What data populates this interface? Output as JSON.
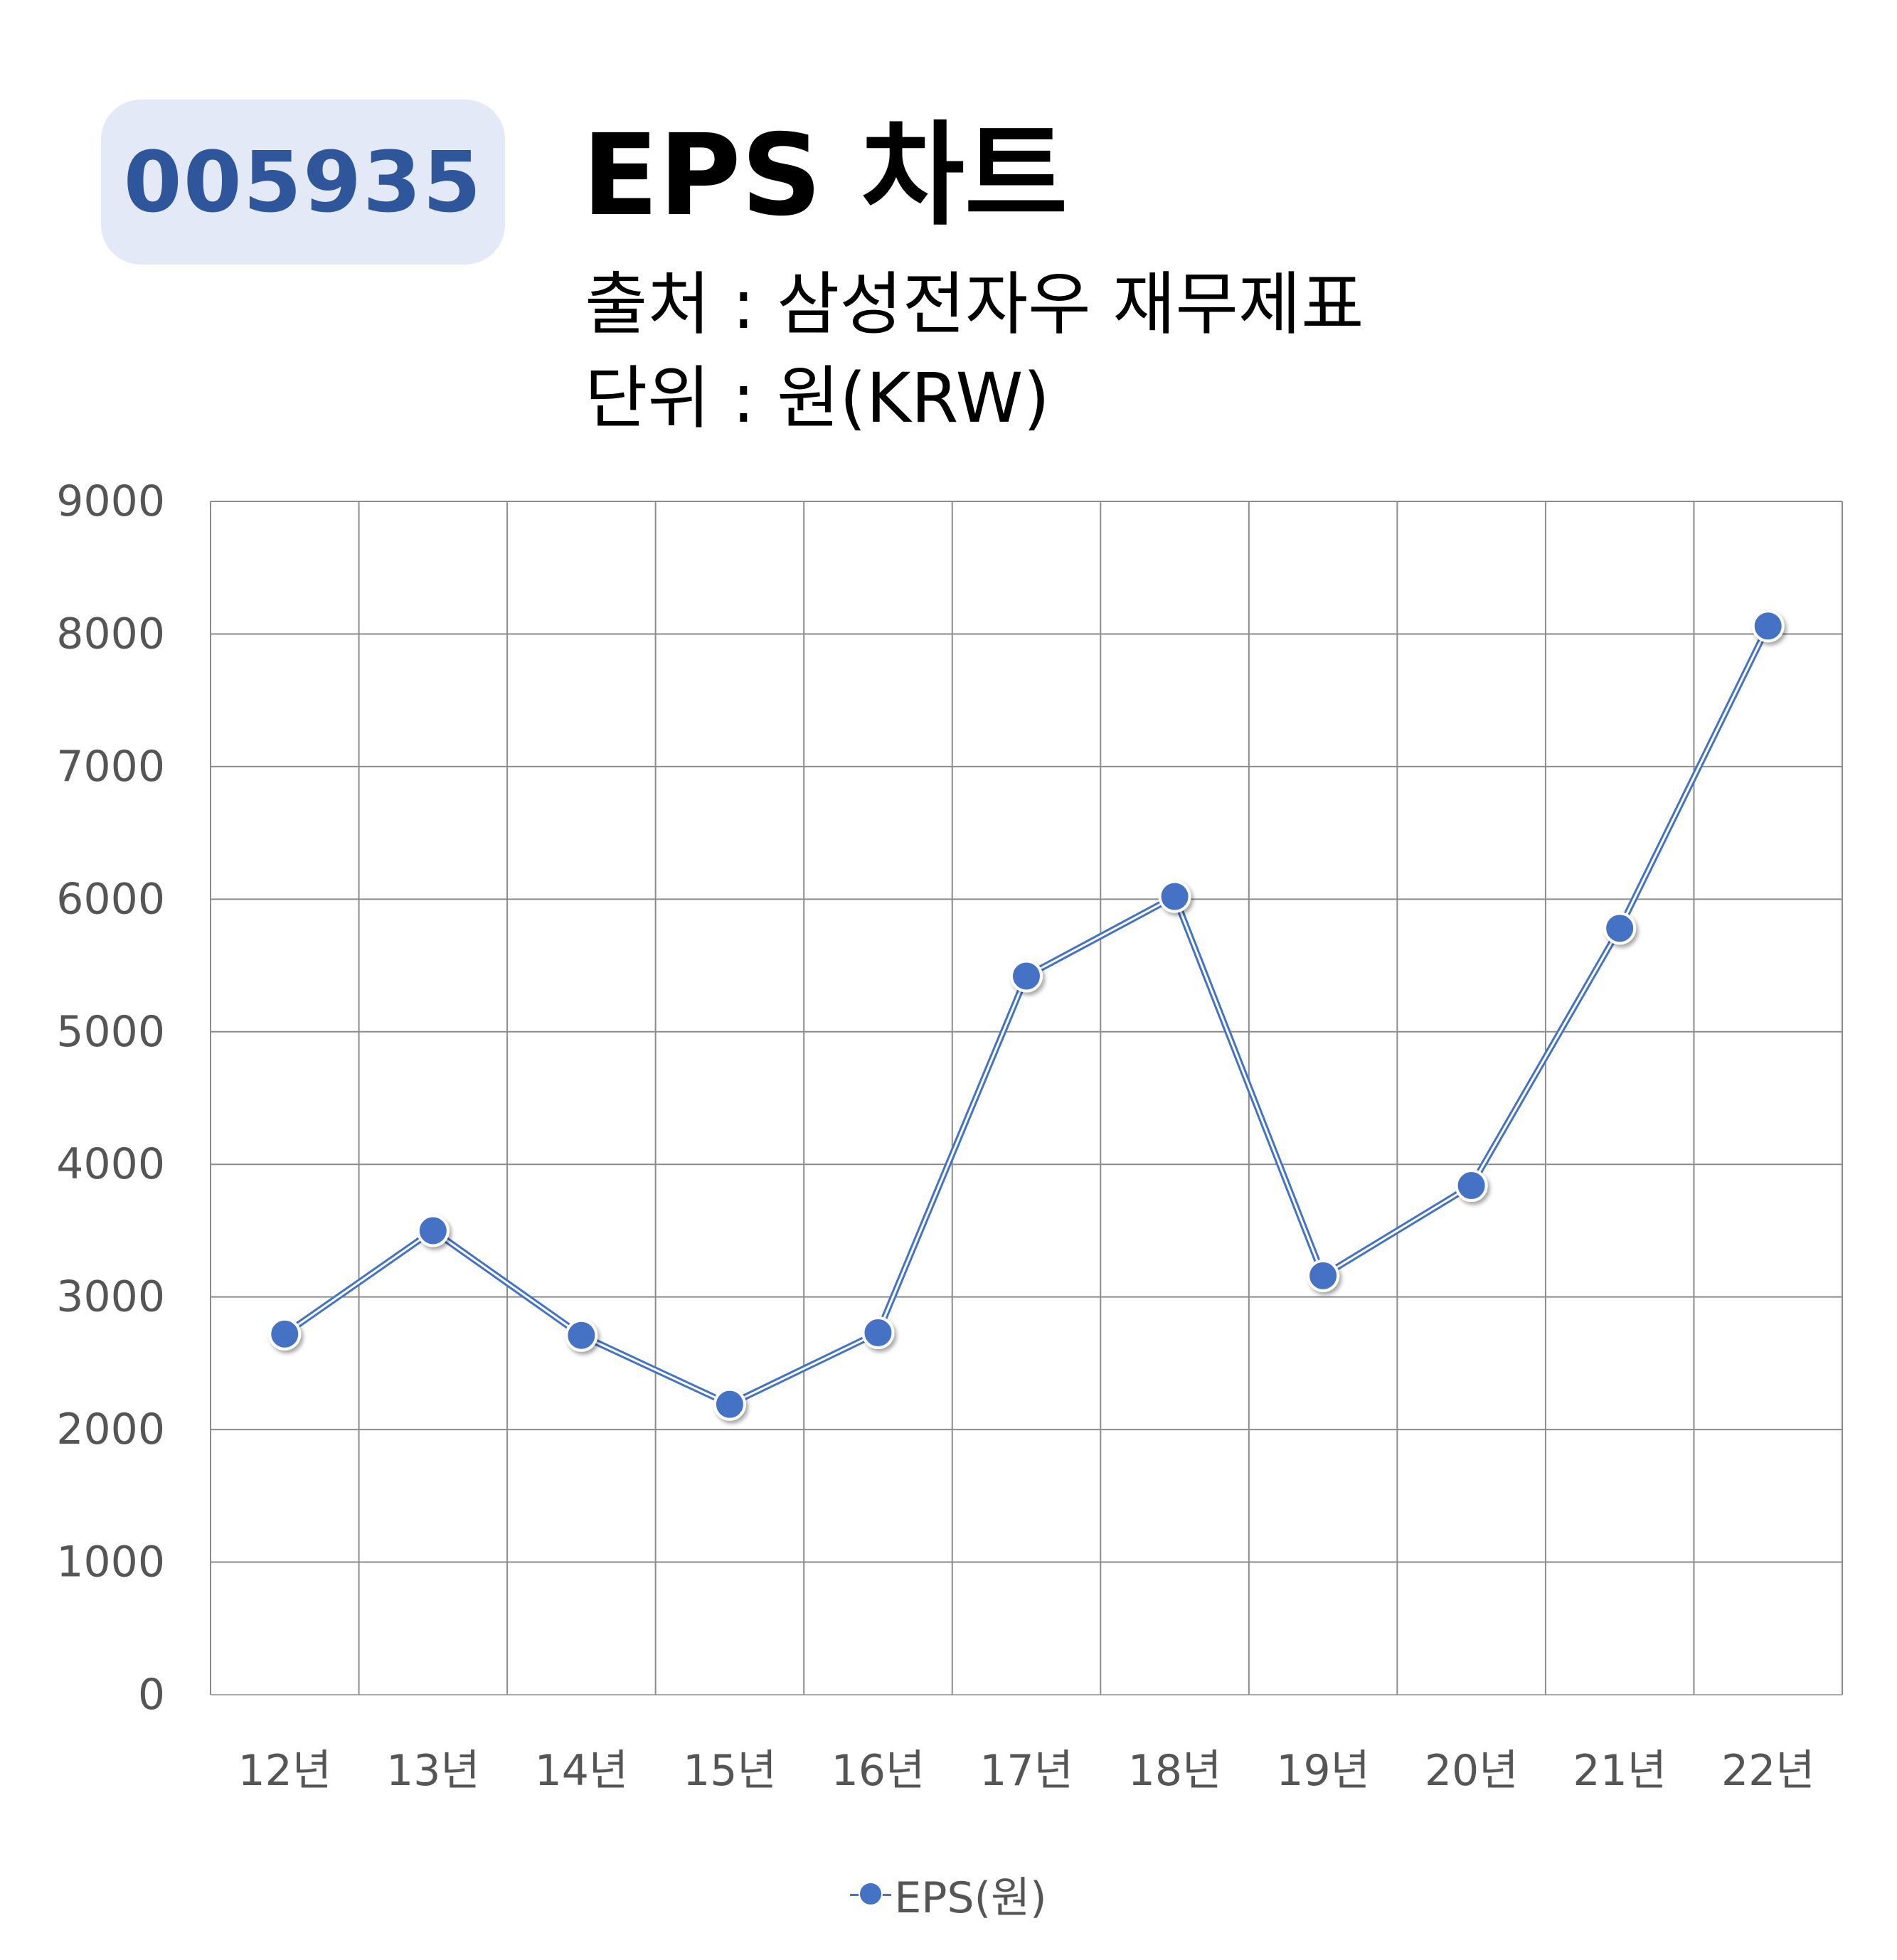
{
  "header": {
    "ticker": "005935",
    "title": "EPS 차트",
    "source_line": "출처 : 삼성전자우 재무제표",
    "unit_line": "단위 : 원(KRW)"
  },
  "colors": {
    "series": "#4472c4",
    "badge_bg": "#e3e9f6",
    "badge_text": "#2f569b",
    "grid": "#8c8c8c"
  },
  "chart_data": {
    "type": "line",
    "title": "EPS 차트",
    "xlabel": "",
    "ylabel": "",
    "categories": [
      "12년",
      "13년",
      "14년",
      "15년",
      "16년",
      "17년",
      "18년",
      "19년",
      "20년",
      "21년",
      "22년"
    ],
    "series": [
      {
        "name": "EPS(원)",
        "values": [
          2720,
          3500,
          2710,
          2190,
          2730,
          5420,
          6020,
          3160,
          3840,
          5780,
          8060
        ]
      }
    ],
    "ylim": [
      0,
      9000
    ],
    "yticks": [
      0,
      1000,
      2000,
      3000,
      4000,
      5000,
      6000,
      7000,
      8000,
      9000
    ],
    "grid": true,
    "legend": "bottom"
  }
}
